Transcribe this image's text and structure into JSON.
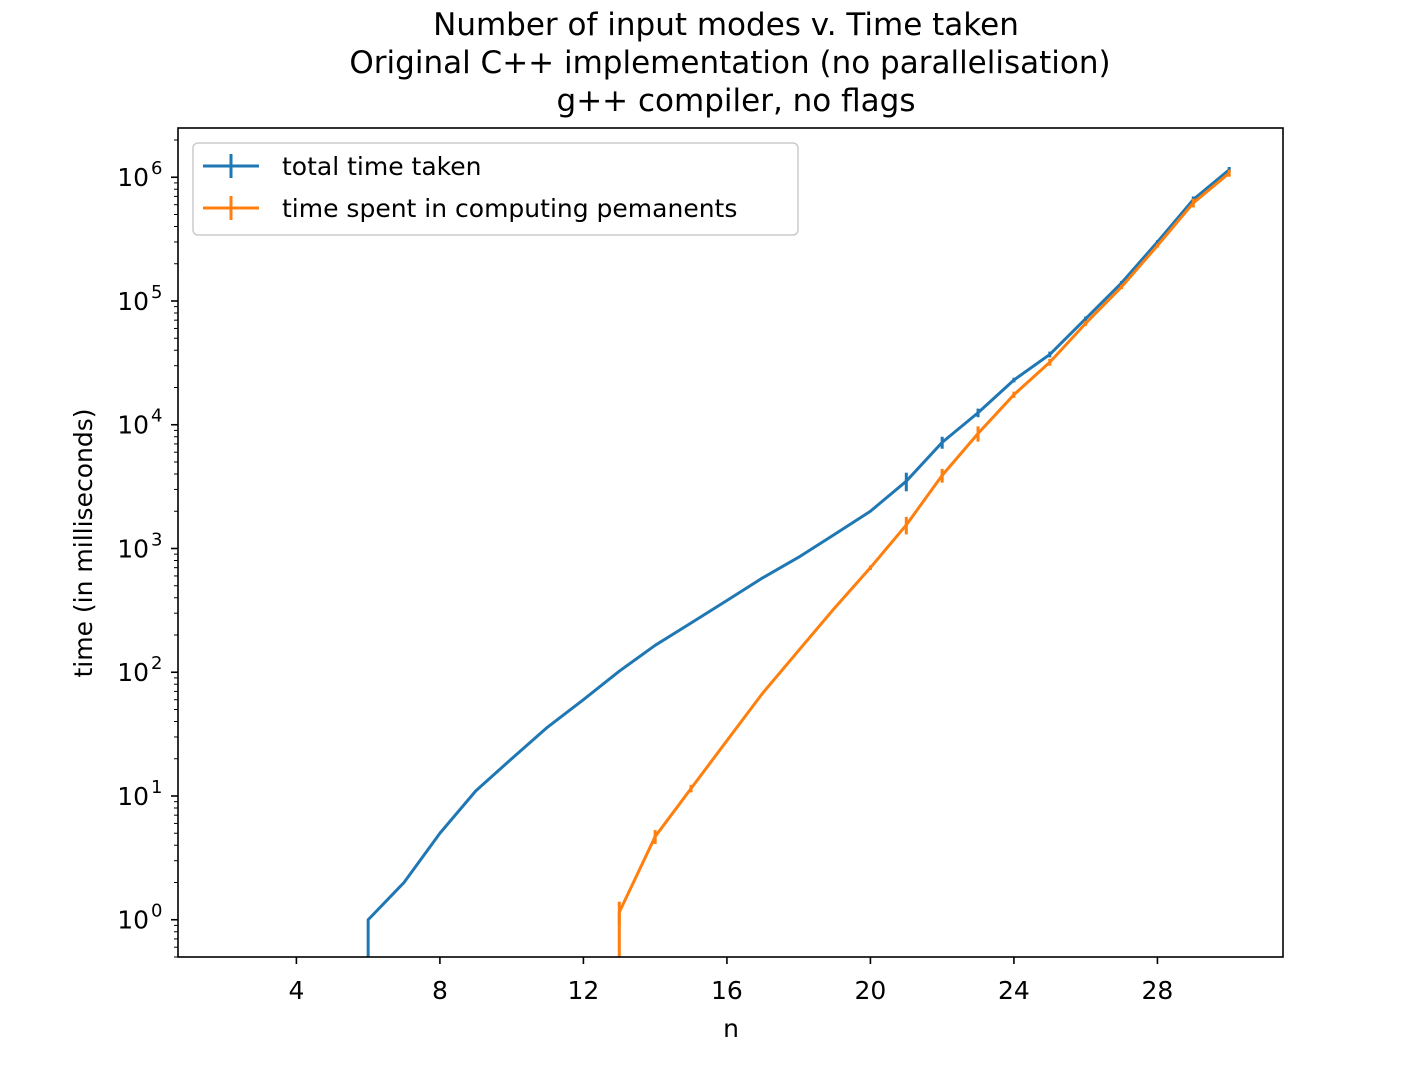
{
  "chart_data": {
    "type": "line",
    "title": [
      "Number of input modes v. Time taken",
      "Original C++ implementation (no parallelisation)",
      "g++ compiler, no flags"
    ],
    "xlabel": "n",
    "ylabel": "time (in milliseconds)",
    "xlim": [
      0.7,
      31.5
    ],
    "ylim": [
      0.5,
      2500000
    ],
    "yscale": "log",
    "xticks": [
      4,
      8,
      12,
      16,
      20,
      24,
      28
    ],
    "yticks": [
      {
        "value": 1,
        "base": "10",
        "exp": "0"
      },
      {
        "value": 10,
        "base": "10",
        "exp": "1"
      },
      {
        "value": 100,
        "base": "10",
        "exp": "2"
      },
      {
        "value": 1000,
        "base": "10",
        "exp": "3"
      },
      {
        "value": 10000,
        "base": "10",
        "exp": "4"
      },
      {
        "value": 100000,
        "base": "10",
        "exp": "5"
      },
      {
        "value": 1000000,
        "base": "10",
        "exp": "6"
      }
    ],
    "grid": false,
    "legend_position": "top-left",
    "series": [
      {
        "name": "total time taken",
        "color": "#1f77b4",
        "x": [
          1,
          2,
          3,
          4,
          5,
          6,
          7,
          8,
          9,
          10,
          11,
          12,
          13,
          14,
          15,
          16,
          17,
          18,
          19,
          20,
          21,
          22,
          23,
          24,
          25,
          26,
          27,
          28,
          29,
          30
        ],
        "y": [
          0,
          0,
          0,
          0,
          0,
          1,
          2,
          5,
          11,
          20,
          36,
          60,
          102,
          165,
          250,
          380,
          580,
          850,
          1300,
          2000,
          3500,
          7200,
          12500,
          23000,
          37000,
          72000,
          140000,
          300000,
          660000,
          1150000
        ],
        "yerr": [
          0,
          0,
          0,
          0,
          0,
          0,
          0,
          0,
          0,
          0,
          0,
          0,
          0,
          0,
          0,
          0,
          0,
          0,
          0,
          0,
          600,
          800,
          1000,
          1000,
          2000,
          3000,
          5000,
          10000,
          40000,
          60000
        ]
      },
      {
        "name": "time spent in computing pemanents",
        "color": "#ff7f0e",
        "x": [
          1,
          2,
          3,
          4,
          5,
          6,
          7,
          8,
          9,
          10,
          11,
          12,
          13,
          14,
          15,
          16,
          17,
          18,
          19,
          20,
          21,
          22,
          23,
          24,
          25,
          26,
          27,
          28,
          29,
          30
        ],
        "y": [
          0,
          0,
          0,
          0,
          0,
          0,
          0,
          0,
          0,
          0,
          0,
          0,
          1.15,
          4.7,
          11.5,
          28,
          68,
          150,
          330,
          700,
          1550,
          3900,
          8500,
          17500,
          32000,
          66000,
          130000,
          280000,
          620000,
          1080000
        ],
        "yerr": [
          0,
          0,
          0,
          0,
          0,
          0,
          0,
          0,
          0,
          0,
          0,
          0,
          0.25,
          0.6,
          0.8,
          0,
          0,
          0,
          0,
          30,
          250,
          500,
          1200,
          1000,
          2000,
          3000,
          5000,
          10000,
          50000,
          70000
        ]
      }
    ]
  }
}
